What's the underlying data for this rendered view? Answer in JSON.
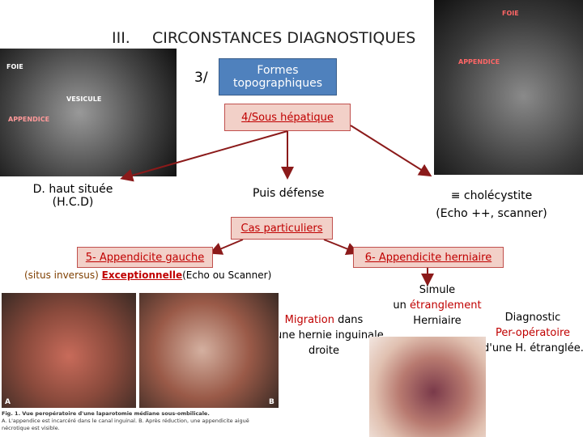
{
  "title": {
    "number": "III.",
    "text": "CIRCONSTANCES DIAGNOSTIQUES"
  },
  "section": {
    "number": "3/",
    "label": "Formes topographiques"
  },
  "subsection": "4/Sous hépatique",
  "branches": {
    "left": [
      "D. haut située",
      "(H.C.D)"
    ],
    "middle": "Puis défense",
    "right": [
      "≡ cholécystite",
      "(Echo ++, scanner)"
    ]
  },
  "special_cases": "Cas particuliers",
  "case5": {
    "title": "5- Appendicite gauche",
    "note": [
      "(situs inversus)",
      "Exceptionnelle",
      "(Echo ou Scanner)"
    ]
  },
  "case6": {
    "title": "6- Appendicite herniaire",
    "simule": [
      "Simule",
      "un",
      "étranglement",
      "Herniaire"
    ],
    "migration": [
      "Migration",
      "dans",
      "une hernie inguinale",
      "droite"
    ],
    "diagnostic": [
      "Diagnostic",
      "Per-opératoire",
      "d'une H. étranglée."
    ]
  },
  "images": {
    "ct_left": [
      "FOIE",
      "VESICULE",
      "APPENDICE"
    ],
    "ct_right": [
      "FOIE",
      "APPENDICE"
    ],
    "photo": {
      "labels": [
        "A",
        "B"
      ],
      "caption": [
        "Fig. 1. Vue peropératoire d'une laparotomie médiane sous-ombilicale.",
        "A. L'appendice est incarcéré dans le canal inguinal. B. Après réduction, une appendicite aiguë nécrotique est visible."
      ]
    }
  }
}
